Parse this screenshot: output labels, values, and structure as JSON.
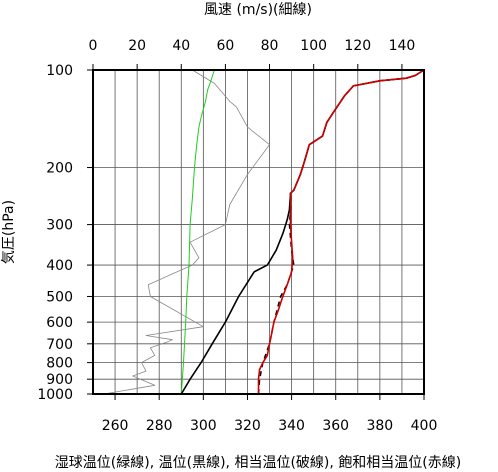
{
  "chart_data": {
    "type": "line",
    "title_top": "風速 (m/s)(細線)",
    "xlabel": "湿球温位(緑線), 温位(黒線), 相当温位(破線), 飽和相当温位(赤線)",
    "ylabel": "気圧(hPa)",
    "x_bottom": {
      "range": [
        250,
        400
      ],
      "ticks": [
        260,
        280,
        300,
        320,
        340,
        360,
        380,
        400
      ],
      "tick_labels": [
        "260",
        "280",
        "300",
        "320",
        "340",
        "360",
        "380",
        "400"
      ]
    },
    "x_top": {
      "range": [
        0,
        150
      ],
      "ticks": [
        0,
        20,
        40,
        60,
        80,
        100,
        120,
        140
      ],
      "tick_labels": [
        "0",
        "20",
        "40",
        "60",
        "80",
        "100",
        "120",
        "140"
      ]
    },
    "y": {
      "scale": "log",
      "range": [
        1000,
        100
      ],
      "ticks": [
        1000,
        900,
        800,
        700,
        600,
        500,
        400,
        300,
        200,
        100
      ],
      "tick_labels": [
        "1000",
        "900",
        "800",
        "700",
        "600",
        "500",
        "400",
        "300",
        "200",
        "100"
      ]
    },
    "grid": true,
    "series": [
      {
        "key": "wind_speed",
        "axis": "top",
        "color": "#888888",
        "style": "thin",
        "points": [
          [
            5,
            1000
          ],
          [
            28,
            940
          ],
          [
            18,
            880
          ],
          [
            24,
            850
          ],
          [
            22,
            800
          ],
          [
            28,
            760
          ],
          [
            26,
            720
          ],
          [
            34,
            690
          ],
          [
            36,
            680
          ],
          [
            24,
            660
          ],
          [
            50,
            620
          ],
          [
            26,
            500
          ],
          [
            25,
            460
          ],
          [
            38,
            420
          ],
          [
            45,
            400
          ],
          [
            48,
            380
          ],
          [
            44,
            340
          ],
          [
            60,
            300
          ],
          [
            62,
            260
          ],
          [
            70,
            210
          ],
          [
            80,
            170
          ],
          [
            70,
            150
          ],
          [
            65,
            130
          ],
          [
            62,
            125
          ],
          [
            55,
            110
          ],
          [
            45,
            100
          ]
        ]
      },
      {
        "key": "wet_bulb_pot_temp",
        "axis": "bottom",
        "color": "#22cc22",
        "style": "solid",
        "points": [
          [
            290,
            1000
          ],
          [
            291,
            800
          ],
          [
            292,
            600
          ],
          [
            292.5,
            500
          ],
          [
            293.5,
            400
          ],
          [
            294,
            300
          ],
          [
            295,
            250
          ],
          [
            296,
            200
          ],
          [
            297,
            170
          ],
          [
            298,
            150
          ],
          [
            299,
            140
          ],
          [
            301,
            125
          ],
          [
            302,
            115
          ],
          [
            303,
            110
          ],
          [
            305,
            100
          ]
        ]
      },
      {
        "key": "pot_temp",
        "axis": "bottom",
        "color": "#000000",
        "style": "solid",
        "points": [
          [
            290,
            1000
          ],
          [
            294,
            900
          ],
          [
            299,
            800
          ],
          [
            304,
            700
          ],
          [
            310,
            600
          ],
          [
            316,
            500
          ],
          [
            323,
            420
          ],
          [
            329,
            400
          ],
          [
            333,
            360
          ],
          [
            336,
            320
          ],
          [
            338,
            290
          ],
          [
            339,
            270
          ],
          [
            339.5,
            240
          ],
          [
            341,
            235
          ],
          [
            344,
            210
          ],
          [
            346,
            190
          ],
          [
            348,
            170
          ],
          [
            354,
            160
          ],
          [
            356,
            145
          ],
          [
            359,
            135
          ],
          [
            364,
            120
          ],
          [
            368,
            112
          ],
          [
            380,
            108
          ],
          [
            392,
            106
          ],
          [
            396,
            104
          ],
          [
            400,
            100
          ]
        ]
      },
      {
        "key": "equiv_pot_temp",
        "axis": "bottom",
        "color": "#000000",
        "style": "dashed",
        "points": [
          [
            325,
            1000
          ],
          [
            325.5,
            900
          ],
          [
            327,
            800
          ],
          [
            330,
            700
          ],
          [
            332,
            600
          ],
          [
            335,
            500
          ],
          [
            338,
            460
          ],
          [
            341,
            400
          ],
          [
            340,
            360
          ],
          [
            339,
            300
          ],
          [
            339.5,
            270
          ],
          [
            339.5,
            240
          ],
          [
            341,
            235
          ],
          [
            344,
            210
          ],
          [
            346,
            190
          ],
          [
            348,
            170
          ],
          [
            354,
            160
          ],
          [
            356,
            145
          ],
          [
            359,
            135
          ],
          [
            364,
            120
          ],
          [
            368,
            112
          ],
          [
            380,
            108
          ],
          [
            392,
            106
          ],
          [
            396,
            104
          ],
          [
            400,
            100
          ]
        ]
      },
      {
        "key": "sat_equiv_pot_temp",
        "axis": "bottom",
        "color": "#cc0000",
        "style": "solid",
        "points": [
          [
            325,
            1000
          ],
          [
            325,
            900
          ],
          [
            325.5,
            840
          ],
          [
            327,
            800
          ],
          [
            329,
            760
          ],
          [
            330,
            700
          ],
          [
            331,
            650
          ],
          [
            332,
            600
          ],
          [
            334,
            550
          ],
          [
            336,
            500
          ],
          [
            338,
            460
          ],
          [
            340,
            420
          ],
          [
            340.5,
            380
          ],
          [
            340,
            340
          ],
          [
            339.5,
            300
          ],
          [
            339.5,
            270
          ],
          [
            339.5,
            240
          ],
          [
            341,
            235
          ],
          [
            344,
            210
          ],
          [
            346,
            190
          ],
          [
            348,
            170
          ],
          [
            354,
            160
          ],
          [
            356,
            145
          ],
          [
            359,
            135
          ],
          [
            364,
            120
          ],
          [
            368,
            112
          ],
          [
            380,
            108
          ],
          [
            392,
            106
          ],
          [
            396,
            104
          ],
          [
            400,
            100
          ]
        ]
      }
    ]
  }
}
